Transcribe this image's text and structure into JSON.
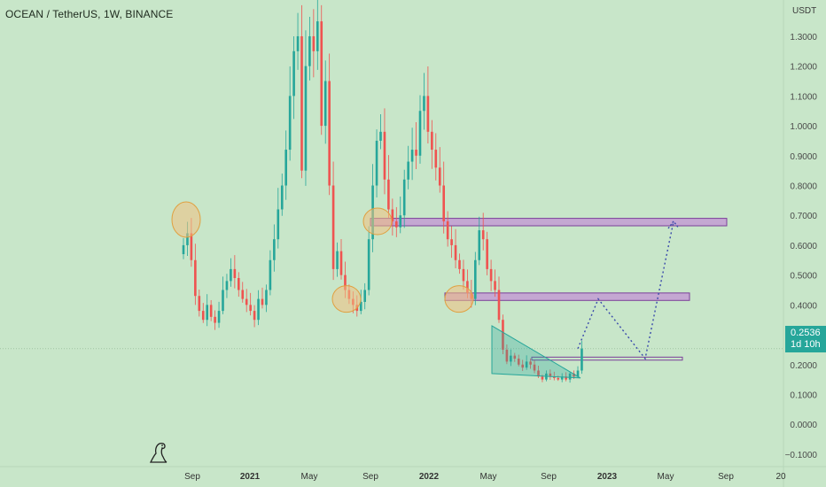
{
  "header": {
    "title": "OCEAN / TetherUS, 1W, BINANCE"
  },
  "price_tag": {
    "price": "0.2536",
    "countdown": "1d 10h"
  },
  "colors": {
    "background": "#c8e6c9",
    "up": "#26a69a",
    "down": "#ef5350",
    "zone": "#c39bd3",
    "zone_border": "#7b3f99",
    "circle": "#f0c080",
    "projection": "#3949ab",
    "wedge": "#26a69a"
  },
  "logo": {
    "icon": "dinosaur-icon"
  },
  "chart_data": {
    "type": "candlestick",
    "title": "OCEAN / TetherUS, 1W, BINANCE",
    "y_axis": {
      "unit": "USDT",
      "ticks": [
        "1.3000",
        "1.2000",
        "1.1000",
        "1.0000",
        "0.9000",
        "0.8000",
        "0.7000",
        "0.6000",
        "0.5000",
        "0.4000",
        "0.3000",
        "0.2000",
        "0.1000",
        "0.0000",
        "−0.1000"
      ],
      "range": [
        -0.13,
        1.38
      ]
    },
    "x_axis": {
      "ticks": [
        "Sep",
        "2021",
        "May",
        "Sep",
        "2022",
        "May",
        "Sep",
        "2023",
        "May",
        "Sep",
        "20"
      ]
    },
    "current_price": 0.2536,
    "price_series_close": [
      0.6,
      0.64,
      0.55,
      0.43,
      0.38,
      0.35,
      0.4,
      0.36,
      0.34,
      0.38,
      0.45,
      0.48,
      0.52,
      0.49,
      0.45,
      0.42,
      0.4,
      0.38,
      0.35,
      0.42,
      0.4,
      0.45,
      0.55,
      0.62,
      0.72,
      0.8,
      0.92,
      1.1,
      1.25,
      1.3,
      0.85,
      1.2,
      1.3,
      1.25,
      1.35,
      1.0,
      1.15,
      0.8,
      0.52,
      0.58,
      0.5,
      0.45,
      0.42,
      0.4,
      0.38,
      0.41,
      0.45,
      0.62,
      0.8,
      0.95,
      0.98,
      0.82,
      0.72,
      0.68,
      0.66,
      0.7,
      0.82,
      0.88,
      0.92,
      0.9,
      1.05,
      1.1,
      0.98,
      0.92,
      0.86,
      0.8,
      0.68,
      0.62,
      0.6,
      0.55,
      0.52,
      0.48,
      0.44,
      0.42,
      0.55,
      0.65,
      0.62,
      0.52,
      0.48,
      0.45,
      0.35,
      0.25,
      0.21,
      0.23,
      0.22,
      0.2,
      0.19,
      0.21,
      0.2,
      0.18,
      0.16,
      0.15,
      0.17,
      0.16,
      0.155,
      0.15,
      0.16,
      0.15,
      0.17,
      0.16,
      0.18,
      0.2536
    ],
    "zones": [
      {
        "from": 0.665,
        "to": 0.69
      },
      {
        "from": 0.415,
        "to": 0.44
      },
      {
        "from": 0.215,
        "to": 0.225
      }
    ],
    "circled_levels": [
      0.68,
      0.42,
      0.42,
      0.68
    ],
    "falling_wedge": {
      "top_start": 0.33,
      "bottom_start": 0.17,
      "end": 0.155
    },
    "projection_path": [
      0.2536,
      0.42,
      0.22,
      0.68
    ],
    "grid": false
  }
}
